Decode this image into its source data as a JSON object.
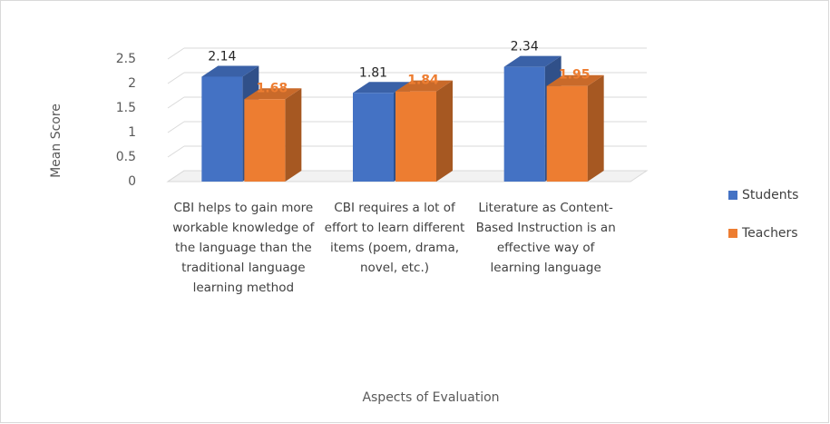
{
  "chart_data": {
    "type": "bar3d",
    "x_label": "Aspects of Evaluation",
    "y_label": "Mean Score",
    "categories": [
      "CBI helps to gain more workable knowledge of the language than the traditional language learning method",
      "CBI requires a lot of effort to learn different items (poem, drama, novel, etc.)",
      "Literature as Content-Based Instruction is an effective way of learning language"
    ],
    "series": [
      {
        "name": "Students",
        "color": "#4472c4",
        "values": [
          2.14,
          1.81,
          2.34
        ]
      },
      {
        "name": "Teachers",
        "color": "#ed7d31",
        "values": [
          1.68,
          1.84,
          1.95
        ]
      }
    ],
    "ylim": [
      0,
      2.5
    ],
    "yticks": [
      0,
      0.5,
      1,
      1.5,
      2,
      2.5
    ],
    "grid": true,
    "legend": "right"
  }
}
